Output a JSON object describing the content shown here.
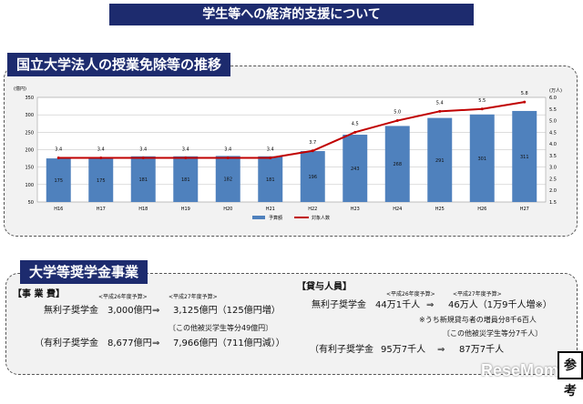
{
  "header": {
    "title": "学生等への経済的支援について"
  },
  "section1": {
    "title": "国立大学法人の授業免除等の推移"
  },
  "chart_data": {
    "type": "bar+line",
    "categories": [
      "H16",
      "H17",
      "H18",
      "H19",
      "H20",
      "H21",
      "H22",
      "H23",
      "H24",
      "H25",
      "H26",
      "H27"
    ],
    "series": [
      {
        "name": "予算額",
        "type": "bar",
        "axis": "left",
        "color": "#4f81bd",
        "values": [
          175,
          175,
          181,
          181,
          182,
          181,
          196,
          243,
          268,
          291,
          301,
          311
        ]
      },
      {
        "name": "対象人数",
        "type": "line",
        "axis": "right",
        "color": "#c00000",
        "values": [
          3.4,
          3.4,
          3.4,
          3.4,
          3.4,
          3.4,
          3.7,
          4.5,
          5.0,
          5.4,
          5.5,
          5.8
        ]
      }
    ],
    "left_axis": {
      "unit": "(億円)",
      "ylim": [
        50,
        350
      ],
      "ticks": [
        50,
        100,
        150,
        200,
        250,
        300,
        350
      ]
    },
    "right_axis": {
      "unit": "(万人)",
      "ylim": [
        1.5,
        6.0
      ],
      "ticks": [
        "1.5",
        "2.0",
        "2.5",
        "3.0",
        "3.5",
        "4.0",
        "4.5",
        "5.0",
        "5.5",
        "6.0"
      ]
    },
    "grid": true,
    "legend": "bottom"
  },
  "section2": {
    "title": "大学等奨学金事業",
    "left": {
      "heading": "【事 業 費】",
      "col1": "<平成26年度予算>",
      "col2": "<平成27年度予算>",
      "row1": {
        "label": "無利子奨学金",
        "from": "3,000億円",
        "arrow": "⇒",
        "to": "3,125億円（125億円増）"
      },
      "note": "〔この他被災学生等分49億円〕",
      "row2": {
        "label": "（有利子奨学金",
        "from": "8,677億円",
        "arrow": "⇒",
        "to": "7,966億円（711億円減））"
      }
    },
    "right": {
      "heading": "【貸与人員】",
      "col1": "<平成26年度予算>",
      "col2": "<平成27年度予算>",
      "row1": {
        "label": "無利子奨学金",
        "from": "44万1千人",
        "arrow": "⇒",
        "to": "46万人（1万9千人増※）"
      },
      "note1": "※うち新規貸与者の増員分8千6百人",
      "note2": "〔この他被災学生等分7千人〕",
      "row2": {
        "label": "（有利子奨学金",
        "from": "95万7千人",
        "arrow": "⇒",
        "to": "87万7千人"
      }
    }
  },
  "side_tab": "参考",
  "watermark": "ReseMom"
}
